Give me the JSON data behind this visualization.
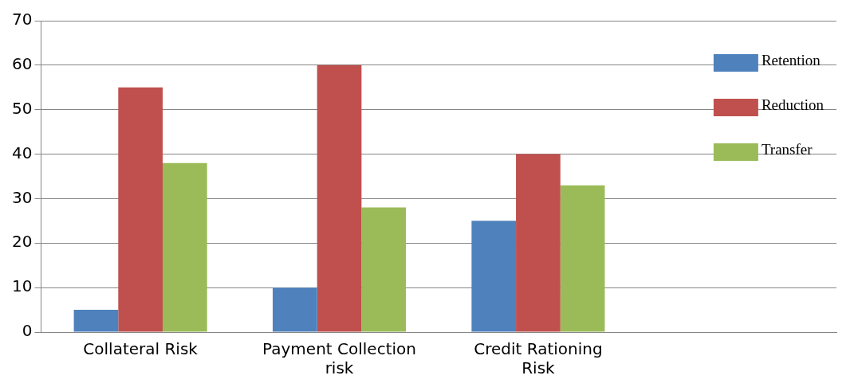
{
  "chart_data": {
    "type": "bar",
    "categories": [
      "Collateral Risk",
      "Payment Collection risk",
      "Credit Rationing Risk",
      null
    ],
    "series": [
      {
        "name": "Retention",
        "color": "#4f81bd",
        "values": [
          5,
          10,
          25,
          null
        ]
      },
      {
        "name": "Reduction",
        "color": "#c0504d",
        "values": [
          55,
          60,
          40,
          null
        ]
      },
      {
        "name": "Transfer",
        "color": "#9bbb59",
        "values": [
          38,
          28,
          33,
          null
        ]
      }
    ],
    "ylim": [
      0,
      70
    ],
    "yticks": [
      0,
      10,
      20,
      30,
      40,
      50,
      60,
      70
    ],
    "grid": "y",
    "legend": "top right"
  }
}
